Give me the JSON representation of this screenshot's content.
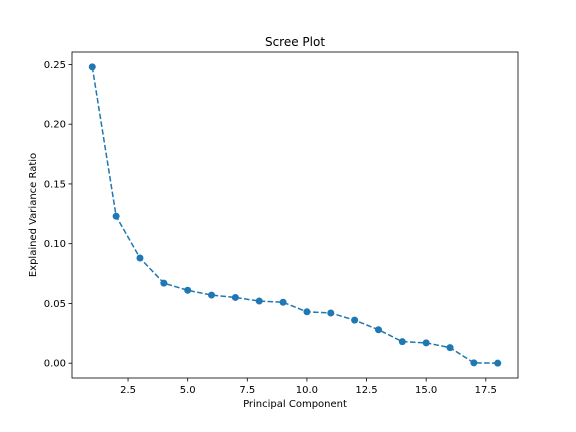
{
  "chart_data": {
    "type": "line",
    "title": "Scree Plot",
    "xlabel": "Principal Component",
    "ylabel": "Explained Variance Ratio",
    "xlim": [
      0.15,
      18.85
    ],
    "ylim": [
      -0.0124,
      0.2604
    ],
    "x_ticks": [
      2.5,
      5.0,
      7.5,
      10.0,
      12.5,
      15.0,
      17.5
    ],
    "x_tick_labels": [
      "2.5",
      "5.0",
      "7.5",
      "10.0",
      "12.5",
      "15.0",
      "17.5"
    ],
    "y_ticks": [
      0.0,
      0.05,
      0.1,
      0.15,
      0.2,
      0.25
    ],
    "y_tick_labels": [
      "0.00",
      "0.05",
      "0.10",
      "0.15",
      "0.20",
      "0.25"
    ],
    "grid": false,
    "legend": "none",
    "series": [
      {
        "x": [
          1,
          2,
          3,
          4,
          5,
          6,
          7,
          8,
          9,
          10,
          11,
          12,
          13,
          14,
          15,
          16,
          17,
          18
        ],
        "y": [
          0.248,
          0.123,
          0.088,
          0.067,
          0.061,
          0.057,
          0.055,
          0.052,
          0.051,
          0.043,
          0.042,
          0.036,
          0.028,
          0.018,
          0.017,
          0.013,
          0.0003,
          0.0
        ],
        "color": "#1f77b4",
        "line_style": "dashed",
        "marker": "circle"
      }
    ]
  }
}
